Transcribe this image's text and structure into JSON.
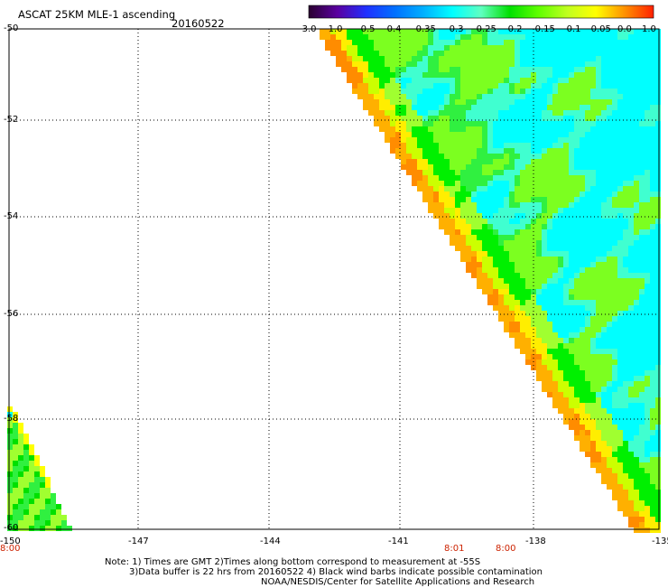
{
  "header": {
    "title": "ASCAT 25KM MLE-1 ascending",
    "date": "20160522"
  },
  "colorbar": {
    "labels": [
      "-3.0",
      "-1.0",
      "-0.5",
      "-0.4",
      "-0.35",
      "-0.3",
      "-0.25",
      "-0.2",
      "-0.15",
      "-0.1",
      "-0.05",
      "0.0",
      "1.0"
    ],
    "colors": [
      "#2a0030",
      "#5a00a0",
      "#2030ff",
      "#0070ff",
      "#00b0ff",
      "#00ffff",
      "#60ffc0",
      "#00e000",
      "#60ff00",
      "#c0ff20",
      "#ffff00",
      "#ff9000",
      "#ff2000"
    ]
  },
  "map": {
    "y_labels": [
      "-50",
      "-52",
      "-54",
      "-56",
      "-58",
      "-60"
    ],
    "x_labels": [
      "-150",
      "-147",
      "-144",
      "-141",
      "-138",
      "-135"
    ],
    "time_labels": [
      "8:00",
      "8:01",
      "8:00"
    ]
  },
  "notes": {
    "line1": "Note: 1) Times are GMT 2)Times along bottom correspond to measurement at -55S",
    "line2": "3)Data buffer is 22 hrs from 20160522 4) Black wind barbs indicate possible contamination",
    "line3": "NOAA/NESDIS/Center for Satellite Applications and Research"
  },
  "colors": {
    "grid": "#000000",
    "time_label": "#cc2200"
  }
}
